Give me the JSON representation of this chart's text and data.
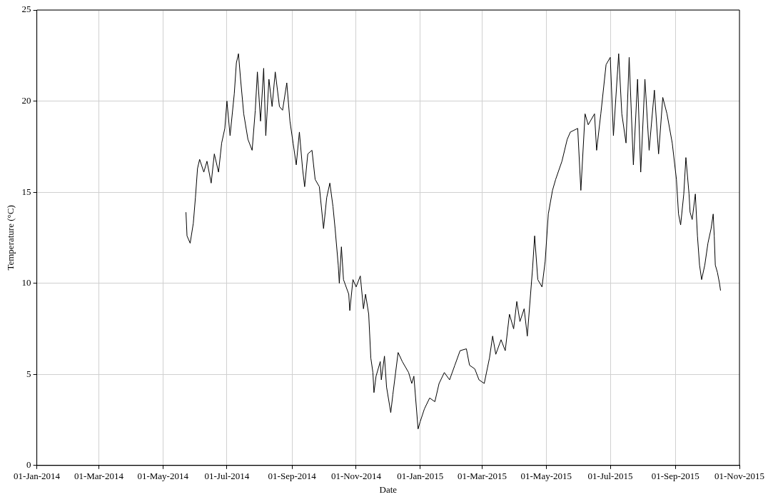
{
  "chart_data": {
    "type": "line",
    "xlabel": "Date",
    "ylabel": "Temperature (°C)",
    "grid": true,
    "marker": "none",
    "line_style": "solid",
    "xlim": [
      "2014-01-01",
      "2015-11-01"
    ],
    "xticks": [
      {
        "value": "2014-01-01",
        "label": "01-Jan-2014"
      },
      {
        "value": "2014-03-01",
        "label": "01-Mar-2014"
      },
      {
        "value": "2014-05-01",
        "label": "01-May-2014"
      },
      {
        "value": "2014-07-01",
        "label": "01-Jul-2014"
      },
      {
        "value": "2014-09-01",
        "label": "01-Sep-2014"
      },
      {
        "value": "2014-11-01",
        "label": "01-Nov-2014"
      },
      {
        "value": "2015-01-01",
        "label": "01-Jan-2015"
      },
      {
        "value": "2015-03-01",
        "label": "01-Mar-2015"
      },
      {
        "value": "2015-05-01",
        "label": "01-May-2015"
      },
      {
        "value": "2015-07-01",
        "label": "01-Jul-2015"
      },
      {
        "value": "2015-09-01",
        "label": "01-Sep-2015"
      },
      {
        "value": "2015-11-01",
        "label": "01-Nov-2015"
      }
    ],
    "ylim": [
      0,
      25
    ],
    "yticks": [
      0,
      5,
      10,
      15,
      20,
      25
    ],
    "x": [
      "2014-05-23",
      "2014-05-24",
      "2014-05-27",
      "2014-05-30",
      "2014-06-01",
      "2014-06-03",
      "2014-06-05",
      "2014-06-09",
      "2014-06-12",
      "2014-06-16",
      "2014-06-19",
      "2014-06-23",
      "2014-06-26",
      "2014-06-29",
      "2014-07-01",
      "2014-07-04",
      "2014-07-08",
      "2014-07-10",
      "2014-07-12",
      "2014-07-14",
      "2014-07-17",
      "2014-07-21",
      "2014-07-25",
      "2014-07-28",
      "2014-07-30",
      "2014-08-02",
      "2014-08-05",
      "2014-08-07",
      "2014-08-10",
      "2014-08-13",
      "2014-08-16",
      "2014-08-20",
      "2014-08-23",
      "2014-08-27",
      "2014-08-30",
      "2014-09-02",
      "2014-09-05",
      "2014-09-08",
      "2014-09-11",
      "2014-09-13",
      "2014-09-16",
      "2014-09-20",
      "2014-09-23",
      "2014-09-27",
      "2014-10-01",
      "2014-10-04",
      "2014-10-07",
      "2014-10-10",
      "2014-10-12",
      "2014-10-15",
      "2014-10-16",
      "2014-10-18",
      "2014-10-20",
      "2014-10-25",
      "2014-10-26",
      "2014-10-29",
      "2014-11-01",
      "2014-11-05",
      "2014-11-08",
      "2014-11-10",
      "2014-11-13",
      "2014-11-15",
      "2014-11-17",
      "2014-11-18",
      "2014-11-20",
      "2014-11-24",
      "2014-11-25",
      "2014-11-28",
      "2014-11-30",
      "2014-12-04",
      "2014-12-06",
      "2014-12-11",
      "2014-12-15",
      "2014-12-21",
      "2014-12-24",
      "2014-12-26",
      "2014-12-30",
      "2015-01-01",
      "2015-01-05",
      "2015-01-10",
      "2015-01-15",
      "2015-01-19",
      "2015-01-24",
      "2015-01-29",
      "2015-02-03",
      "2015-02-08",
      "2015-02-14",
      "2015-02-17",
      "2015-02-22",
      "2015-02-26",
      "2015-03-03",
      "2015-03-08",
      "2015-03-11",
      "2015-03-14",
      "2015-03-19",
      "2015-03-23",
      "2015-03-27",
      "2015-03-31",
      "2015-04-03",
      "2015-04-06",
      "2015-04-10",
      "2015-04-13",
      "2015-04-18",
      "2015-04-20",
      "2015-04-23",
      "2015-04-27",
      "2015-04-30",
      "2015-05-03",
      "2015-05-07",
      "2015-05-10",
      "2015-05-16",
      "2015-05-21",
      "2015-05-24",
      "2015-05-31",
      "2015-06-03",
      "2015-06-07",
      "2015-06-10",
      "2015-06-16",
      "2015-06-18",
      "2015-06-22",
      "2015-06-27",
      "2015-07-01",
      "2015-07-04",
      "2015-07-09",
      "2015-07-12",
      "2015-07-16",
      "2015-07-19",
      "2015-07-23",
      "2015-07-27",
      "2015-07-30",
      "2015-08-03",
      "2015-08-07",
      "2015-08-12",
      "2015-08-16",
      "2015-08-20",
      "2015-08-24",
      "2015-08-29",
      "2015-09-02",
      "2015-09-04",
      "2015-09-06",
      "2015-09-09",
      "2015-09-11",
      "2015-09-14",
      "2015-09-15",
      "2015-09-17",
      "2015-09-20",
      "2015-09-22",
      "2015-09-24",
      "2015-09-26",
      "2015-09-29",
      "2015-10-02",
      "2015-10-05",
      "2015-10-07",
      "2015-10-08",
      "2015-10-09",
      "2015-10-11",
      "2015-10-13",
      "2015-10-14"
    ],
    "series": [
      {
        "color": "#000000",
        "values": [
          13.9,
          12.6,
          12.2,
          13.3,
          14.7,
          16.3,
          16.8,
          16.1,
          16.7,
          15.5,
          17.1,
          16.1,
          17.7,
          18.5,
          20.0,
          18.1,
          20.4,
          22.1,
          22.6,
          21.2,
          19.3,
          17.9,
          17.3,
          19.5,
          21.6,
          18.9,
          21.8,
          18.1,
          21.2,
          19.7,
          21.6,
          19.7,
          19.5,
          21.0,
          18.9,
          17.7,
          16.5,
          18.3,
          16.3,
          15.3,
          17.1,
          17.3,
          15.7,
          15.3,
          13.0,
          14.7,
          15.5,
          14.2,
          13.0,
          11.0,
          10.0,
          12.0,
          10.2,
          9.4,
          8.5,
          10.2,
          9.8,
          10.4,
          8.6,
          9.4,
          8.3,
          5.9,
          5.1,
          4.0,
          4.9,
          5.7,
          4.7,
          6.0,
          4.3,
          2.9,
          3.9,
          6.2,
          5.7,
          5.1,
          4.5,
          4.9,
          2.0,
          2.4,
          3.1,
          3.7,
          3.5,
          4.5,
          5.1,
          4.7,
          5.5,
          6.3,
          6.4,
          5.5,
          5.3,
          4.7,
          4.5,
          5.9,
          7.1,
          6.1,
          6.9,
          6.3,
          8.3,
          7.5,
          9.0,
          7.9,
          8.6,
          7.1,
          10.8,
          12.6,
          10.2,
          9.8,
          11.2,
          13.8,
          15.1,
          15.7,
          16.7,
          17.9,
          18.3,
          18.5,
          15.1,
          19.3,
          18.7,
          19.3,
          17.3,
          19.3,
          22.0,
          22.4,
          18.1,
          22.6,
          19.3,
          17.7,
          22.4,
          16.5,
          21.2,
          16.1,
          21.2,
          17.3,
          20.6,
          17.1,
          20.2,
          19.3,
          17.7,
          15.7,
          13.8,
          13.2,
          14.9,
          16.9,
          14.9,
          13.9,
          13.5,
          14.9,
          12.6,
          11.0,
          10.2,
          11.0,
          12.2,
          13.0,
          13.8,
          12.6,
          11.0,
          10.6,
          10.0,
          9.6
        ]
      }
    ]
  }
}
